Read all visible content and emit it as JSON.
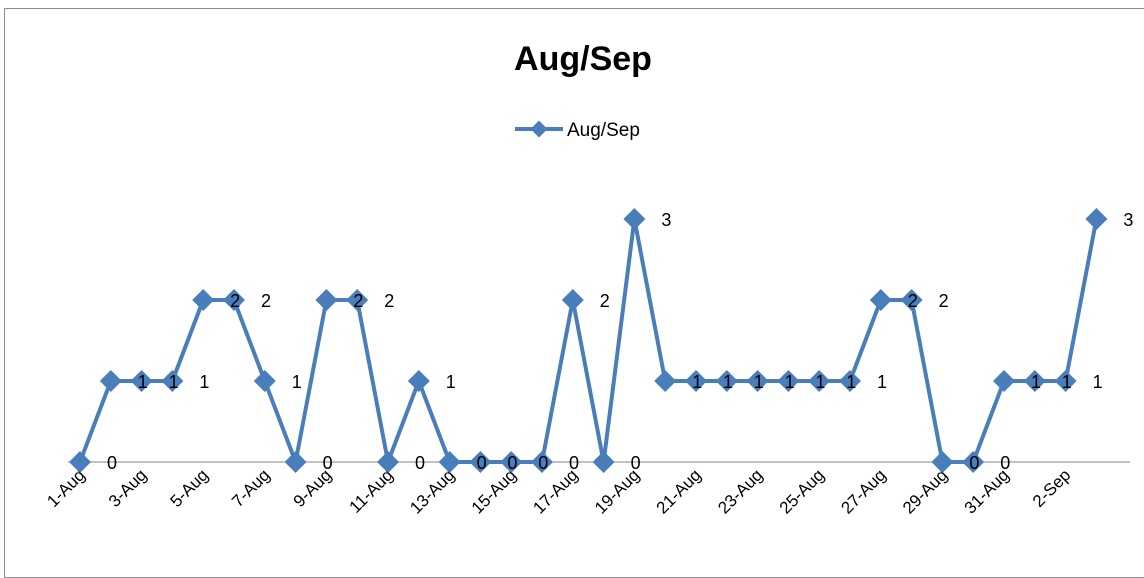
{
  "chart_data": {
    "type": "line",
    "title": "Aug/Sep",
    "xlabel": "",
    "ylabel": "",
    "legend": "top",
    "grid": false,
    "ylim": [
      0,
      3
    ],
    "color": "#4a7ebb",
    "series": [
      {
        "name": "Aug/Sep",
        "x": [
          "1-Aug",
          "2-Aug",
          "3-Aug",
          "4-Aug",
          "5-Aug",
          "6-Aug",
          "7-Aug",
          "8-Aug",
          "9-Aug",
          "10-Aug",
          "11-Aug",
          "12-Aug",
          "13-Aug",
          "14-Aug",
          "15-Aug",
          "16-Aug",
          "17-Aug",
          "18-Aug",
          "19-Aug",
          "20-Aug",
          "21-Aug",
          "22-Aug",
          "23-Aug",
          "24-Aug",
          "25-Aug",
          "26-Aug",
          "27-Aug",
          "28-Aug",
          "29-Aug",
          "30-Aug",
          "31-Aug",
          "1-Sep",
          "2-Sep",
          "3-Sep"
        ],
        "values": [
          0,
          1,
          1,
          1,
          2,
          2,
          1,
          0,
          2,
          2,
          0,
          1,
          0,
          0,
          0,
          0,
          2,
          0,
          3,
          1,
          1,
          1,
          1,
          1,
          1,
          1,
          2,
          2,
          0,
          0,
          1,
          1,
          1,
          3
        ]
      }
    ],
    "x_tick_labels": [
      "1-Aug",
      "3-Aug",
      "5-Aug",
      "7-Aug",
      "9-Aug",
      "11-Aug",
      "13-Aug",
      "15-Aug",
      "17-Aug",
      "19-Aug",
      "21-Aug",
      "23-Aug",
      "25-Aug",
      "27-Aug",
      "29-Aug",
      "31-Aug",
      "2-Sep"
    ]
  }
}
